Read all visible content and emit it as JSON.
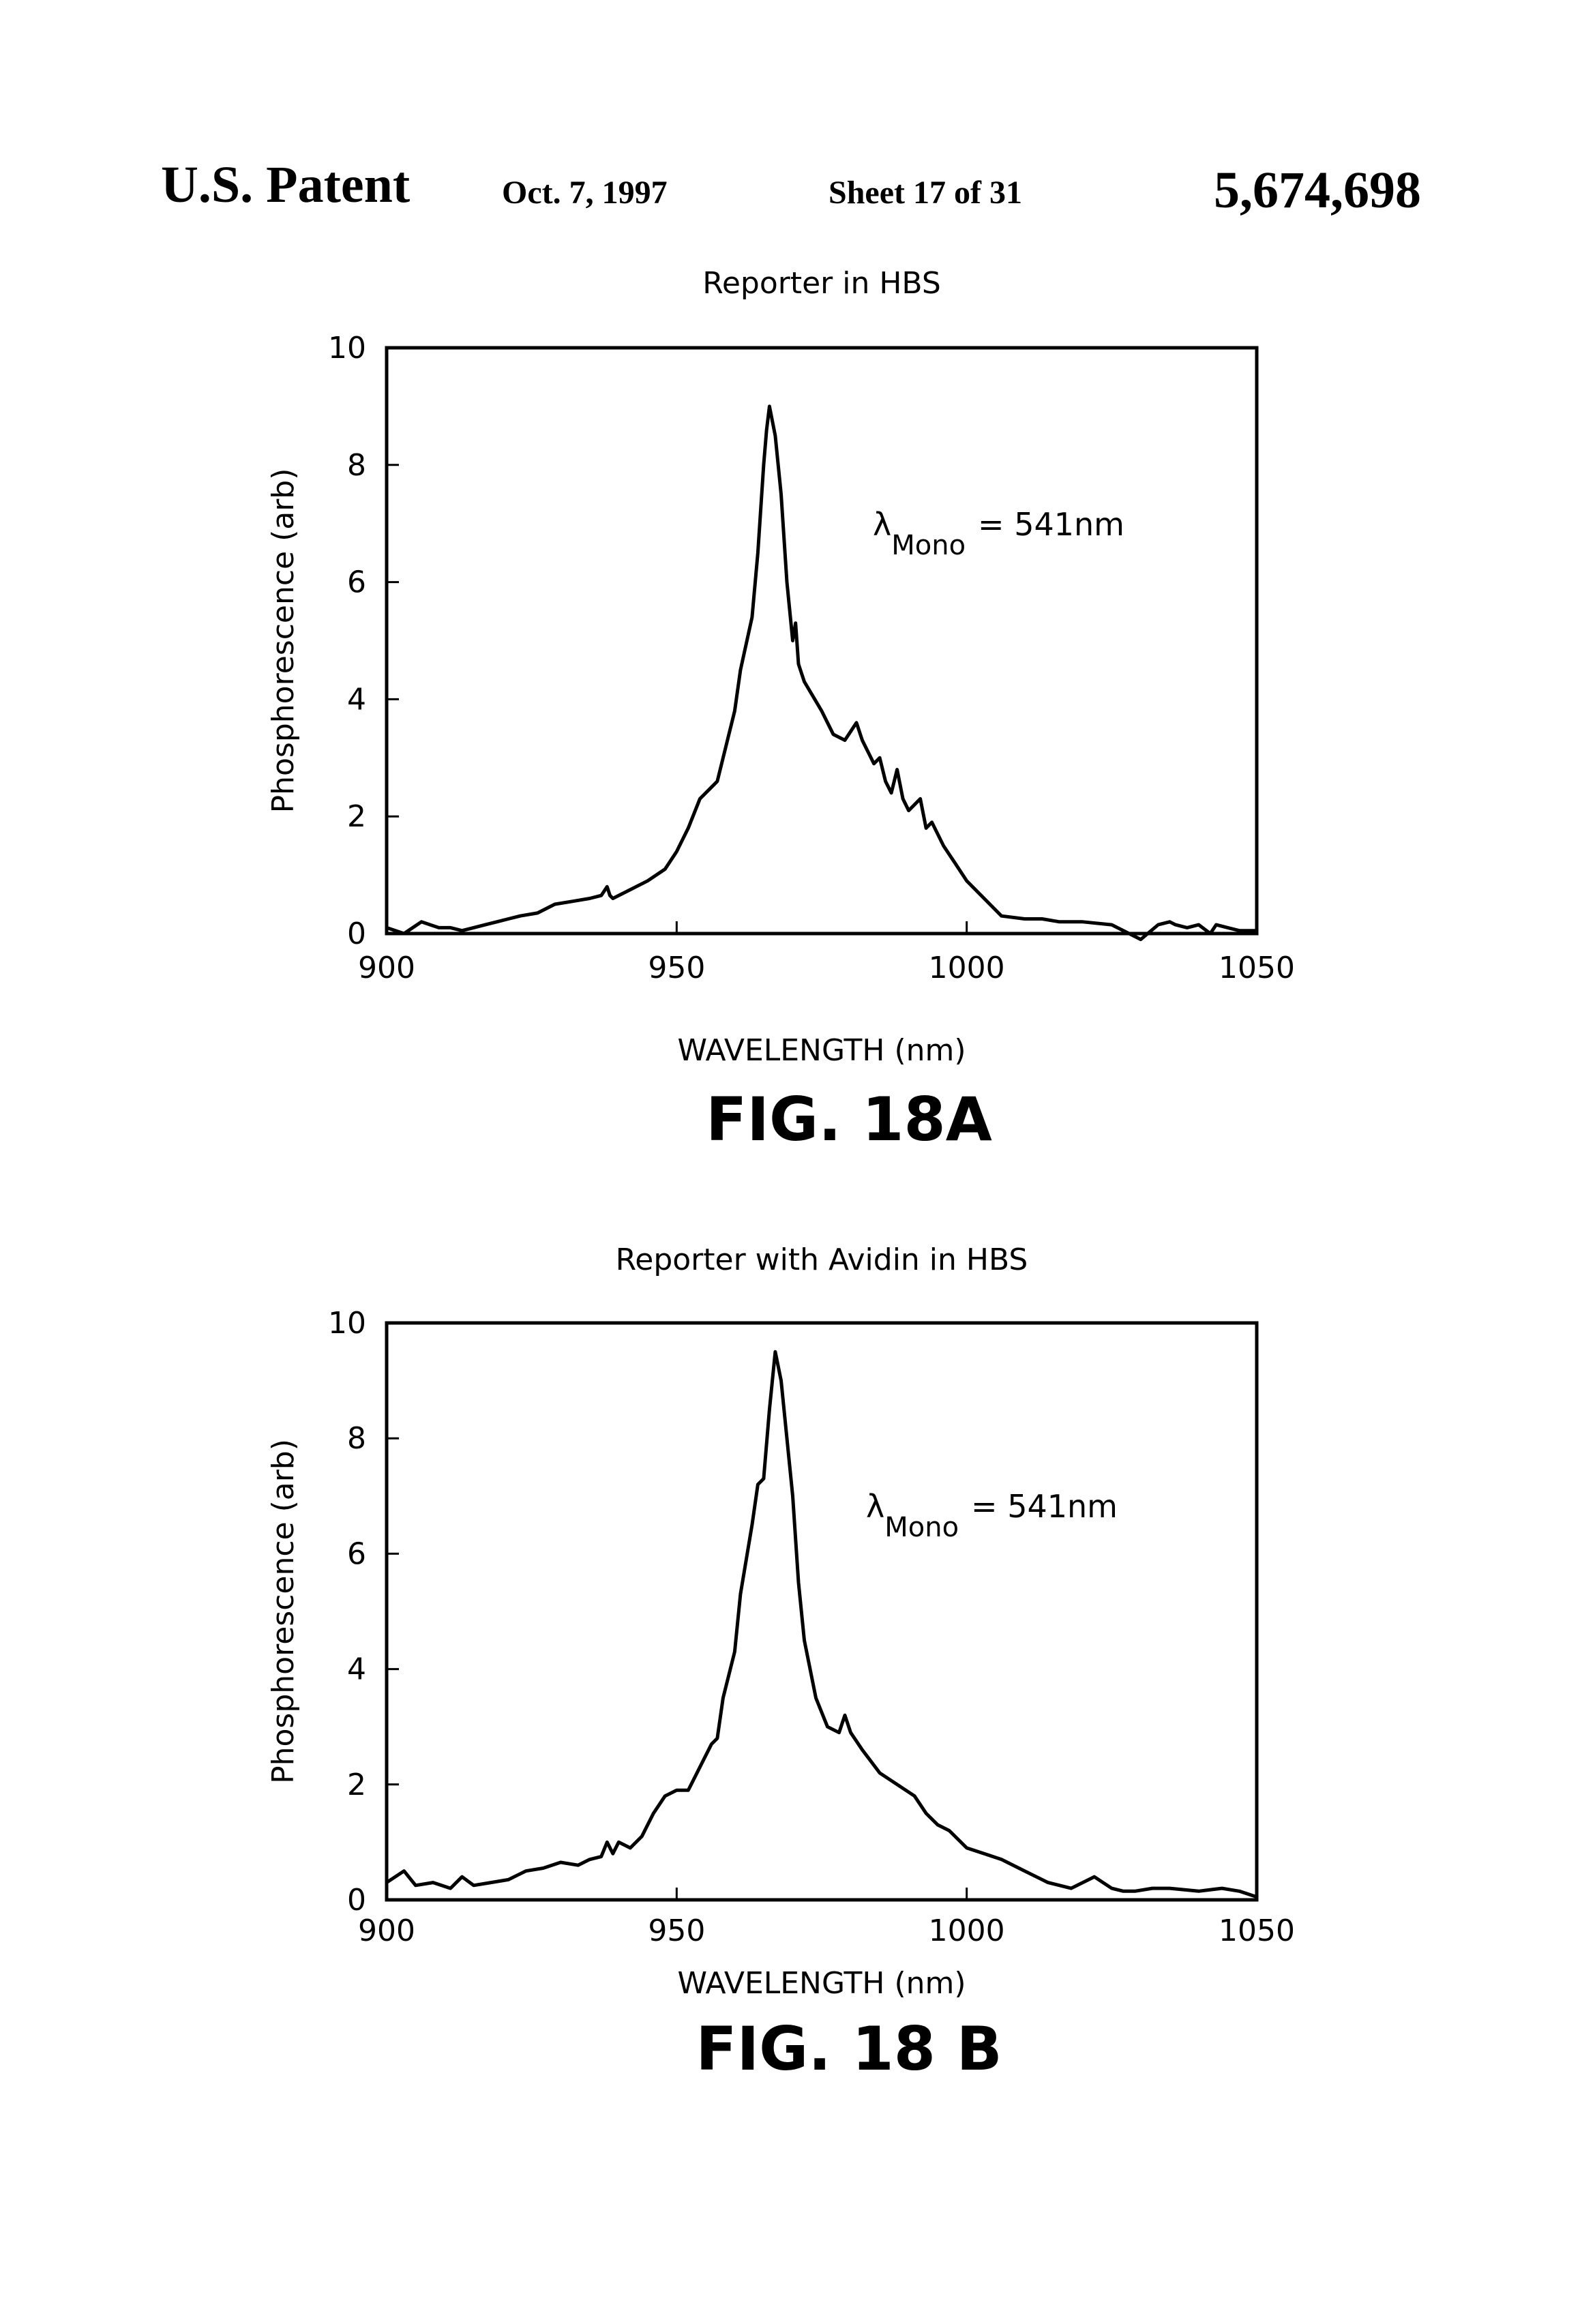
{
  "header": {
    "left": "U.S. Patent",
    "date": "Oct. 7, 1997",
    "sheet": "Sheet 17 of 31",
    "number": "5,674,698"
  },
  "chart_data": [
    {
      "type": "line",
      "title": "Reporter in HBS",
      "xlabel": "WAVELENGTH (nm)",
      "ylabel": "Phosphorescence (arb)",
      "xlim": [
        900,
        1050
      ],
      "ylim": [
        0,
        10
      ],
      "xticks": [
        900,
        950,
        1000,
        1050
      ],
      "yticks": [
        0,
        2,
        4,
        6,
        8,
        10
      ],
      "annotation": {
        "symbol": "λ",
        "subscript": "Mono",
        "text": "= 541nm"
      },
      "caption": "FIG. 18A",
      "grid": false,
      "series": [
        {
          "x": [
            900,
            903,
            906,
            909,
            911,
            913,
            915,
            917,
            919,
            921,
            923,
            926,
            929,
            932,
            935,
            937,
            938,
            938.5,
            939,
            942,
            945,
            948,
            950,
            952,
            954,
            956,
            957,
            958,
            960,
            961,
            963,
            964,
            965,
            965.5,
            966,
            967,
            968,
            969,
            970,
            970.5,
            971,
            972,
            975,
            977,
            979,
            981,
            982,
            984,
            985,
            986,
            987,
            988,
            989,
            990,
            992,
            993,
            994,
            996,
            998,
            1000,
            1003,
            1006,
            1010,
            1013,
            1016,
            1020,
            1025,
            1030,
            1033,
            1035,
            1036,
            1038,
            1040,
            1042,
            1043,
            1045,
            1047,
            1050
          ],
          "y": [
            0.1,
            0.0,
            0.2,
            0.1,
            0.1,
            0.05,
            0.1,
            0.15,
            0.2,
            0.25,
            0.3,
            0.35,
            0.5,
            0.55,
            0.6,
            0.65,
            0.8,
            0.65,
            0.6,
            0.75,
            0.9,
            1.1,
            1.4,
            1.8,
            2.3,
            2.5,
            2.6,
            3.0,
            3.8,
            4.5,
            5.4,
            6.5,
            8.0,
            8.6,
            9.0,
            8.5,
            7.5,
            6.0,
            5.0,
            5.3,
            4.6,
            4.3,
            3.8,
            3.4,
            3.3,
            3.6,
            3.3,
            2.9,
            3.0,
            2.6,
            2.4,
            2.8,
            2.3,
            2.1,
            2.3,
            1.8,
            1.9,
            1.5,
            1.2,
            0.9,
            0.6,
            0.3,
            0.25,
            0.25,
            0.2,
            0.2,
            0.15,
            -0.1,
            0.15,
            0.2,
            0.15,
            0.1,
            0.15,
            0.0,
            0.15,
            0.1,
            0.05,
            0.05
          ]
        }
      ]
    },
    {
      "type": "line",
      "title": "Reporter with Avidin in HBS",
      "xlabel": "WAVELENGTH (nm)",
      "ylabel": "Phosphorescence (arb)",
      "xlim": [
        900,
        1050
      ],
      "ylim": [
        0,
        10
      ],
      "xticks": [
        900,
        950,
        1000,
        1050
      ],
      "yticks": [
        0,
        2,
        4,
        6,
        8,
        10
      ],
      "annotation": {
        "symbol": "λ",
        "subscript": "Mono",
        "text": "= 541nm"
      },
      "caption": "FIG. 18 B",
      "grid": false,
      "series": [
        {
          "x": [
            900,
            903,
            905,
            908,
            911,
            913,
            915,
            918,
            921,
            924,
            927,
            930,
            933,
            935,
            937,
            938,
            939,
            940,
            942,
            944,
            946,
            948,
            950,
            952,
            954,
            956,
            957,
            958,
            960,
            961,
            963,
            964,
            965,
            966,
            967,
            968,
            969,
            970,
            971,
            972,
            974,
            976,
            978,
            979,
            980,
            982,
            985,
            988,
            991,
            993,
            995,
            997,
            1000,
            1003,
            1006,
            1010,
            1014,
            1018,
            1022,
            1025,
            1027,
            1029,
            1032,
            1035,
            1040,
            1044,
            1047,
            1050
          ],
          "y": [
            0.3,
            0.5,
            0.25,
            0.3,
            0.2,
            0.4,
            0.25,
            0.3,
            0.35,
            0.5,
            0.55,
            0.65,
            0.6,
            0.7,
            0.75,
            1.0,
            0.8,
            1.0,
            0.9,
            1.1,
            1.5,
            1.8,
            1.9,
            1.9,
            2.3,
            2.7,
            2.8,
            3.5,
            4.3,
            5.3,
            6.5,
            7.2,
            7.3,
            8.5,
            9.5,
            9.0,
            8.0,
            7.0,
            5.5,
            4.5,
            3.5,
            3.0,
            2.9,
            3.2,
            2.9,
            2.6,
            2.2,
            2.0,
            1.8,
            1.5,
            1.3,
            1.2,
            0.9,
            0.8,
            0.7,
            0.5,
            0.3,
            0.2,
            0.4,
            0.2,
            0.15,
            0.15,
            0.2,
            0.2,
            0.15,
            0.2,
            0.15,
            0.05
          ]
        }
      ]
    }
  ]
}
